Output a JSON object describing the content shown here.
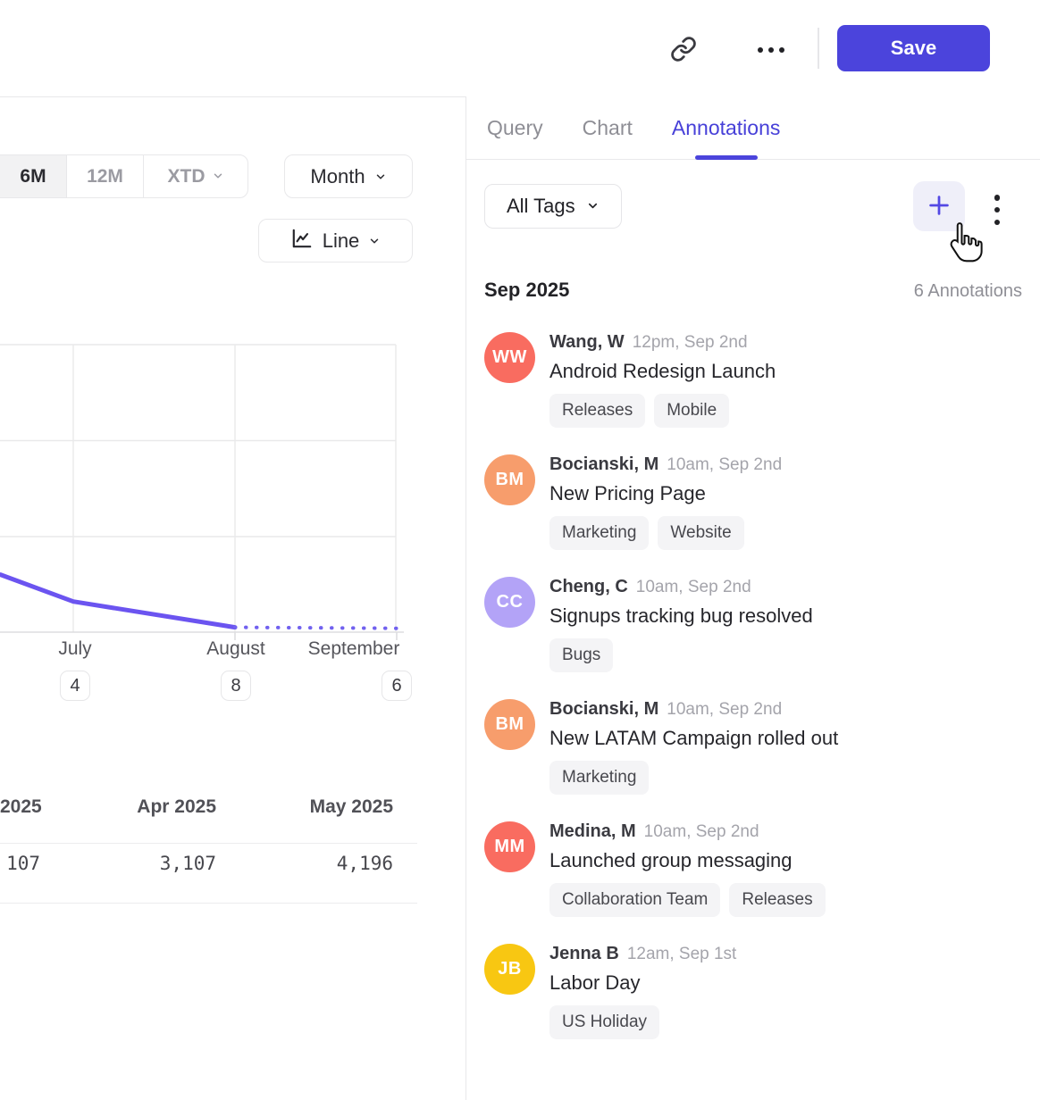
{
  "header": {
    "save_label": "Save"
  },
  "colors": {
    "accent_purple": "#4b44dc",
    "chart_line": "#6b54f0",
    "plus_button_bg": "#efeff9",
    "tag_chip_bg": "#f4f4f6",
    "gridline": "#e9e9ea"
  },
  "icons": {
    "link": "chain-link glyph",
    "more_horizontal": "•••",
    "more_vertical": "⋮",
    "plus": "+",
    "chevron_down": "⌄",
    "line_chart": "axis with zigzag line",
    "cursor": "hand pointer"
  },
  "left_panel": {
    "range_tabs": {
      "items": [
        "6M",
        "12M",
        "XTD"
      ],
      "active": "6M"
    },
    "granularity_button": "Month",
    "chart_type_button": "Line",
    "x_axis": {
      "labels": [
        "July",
        "August",
        "September"
      ],
      "annotation_counts": [
        "4",
        "8",
        "6"
      ]
    },
    "table": {
      "headers": [
        "2025",
        "Apr 2025",
        "May 2025"
      ],
      "values": [
        "107",
        "3,107",
        "4,196"
      ]
    }
  },
  "chart_data": {
    "type": "line",
    "title": "",
    "xlabel": "",
    "ylabel": "",
    "x_tick_labels": [
      "July",
      "August",
      "September"
    ],
    "x_badge_annotation_counts": [
      4,
      8,
      6
    ],
    "y_axis_note": "no visible y tick labels; 3 gridline intervals, line read in gridline units (0=bottom axis, 3=top)",
    "ylim_gridline_units": [
      0,
      3
    ],
    "grid": true,
    "legend": false,
    "series": [
      {
        "name": "observed (solid)",
        "style": "solid",
        "points_month_units": [
          {
            "x": -0.45,
            "y": 0.6
          },
          {
            "x": 0,
            "y": 0.32
          },
          {
            "x": 1,
            "y": 0.05
          }
        ]
      },
      {
        "name": "projected (dotted)",
        "style": "dotted",
        "points_month_units": [
          {
            "x": 1,
            "y": 0.05
          },
          {
            "x": 2,
            "y": 0.04
          }
        ]
      }
    ],
    "x_unit_mapping": "0=July gridline, 1=August gridline, 2=September gridline; line enters clipped at left edge",
    "monthly_table": {
      "columns": [
        "2025 (clipped)",
        "Apr 2025",
        "May 2025"
      ],
      "row": [
        107,
        3107,
        4196
      ]
    },
    "line_color": "#6b54f0"
  },
  "right_panel": {
    "tabs": [
      "Query",
      "Chart",
      "Annotations"
    ],
    "active_tab": "Annotations",
    "filter_button": "All Tags",
    "section": {
      "month": "Sep 2025",
      "count": "6 Annotations"
    },
    "annotations": [
      {
        "initials": "WW",
        "avatar_color": "#f96c60",
        "author": "Wang, W",
        "time": "12pm, Sep 2nd",
        "title": "Android Redesign Launch",
        "tags": [
          "Releases",
          "Mobile"
        ]
      },
      {
        "initials": "BM",
        "avatar_color": "#f79d6c",
        "author": "Bocianski, M",
        "time": "10am, Sep 2nd",
        "title": "New Pricing Page",
        "tags": [
          "Marketing",
          "Website"
        ]
      },
      {
        "initials": "CC",
        "avatar_color": "#b3a3f7",
        "author": "Cheng, C",
        "time": "10am, Sep 2nd",
        "title": "Signups tracking bug resolved",
        "tags": [
          "Bugs"
        ]
      },
      {
        "initials": "BM",
        "avatar_color": "#f79d6c",
        "author": "Bocianski, M",
        "time": "10am, Sep 2nd",
        "title": "New LATAM Campaign rolled out",
        "tags": [
          "Marketing"
        ]
      },
      {
        "initials": "MM",
        "avatar_color": "#f96c60",
        "author": "Medina, M",
        "time": "10am, Sep 2nd",
        "title": "Launched group messaging",
        "tags": [
          "Collaboration Team",
          "Releases"
        ]
      },
      {
        "initials": "JB",
        "avatar_color": "#f8c712",
        "author": "Jenna B",
        "time": "12am, Sep 1st",
        "title": "Labor Day",
        "tags": [
          "US Holiday"
        ]
      }
    ]
  }
}
